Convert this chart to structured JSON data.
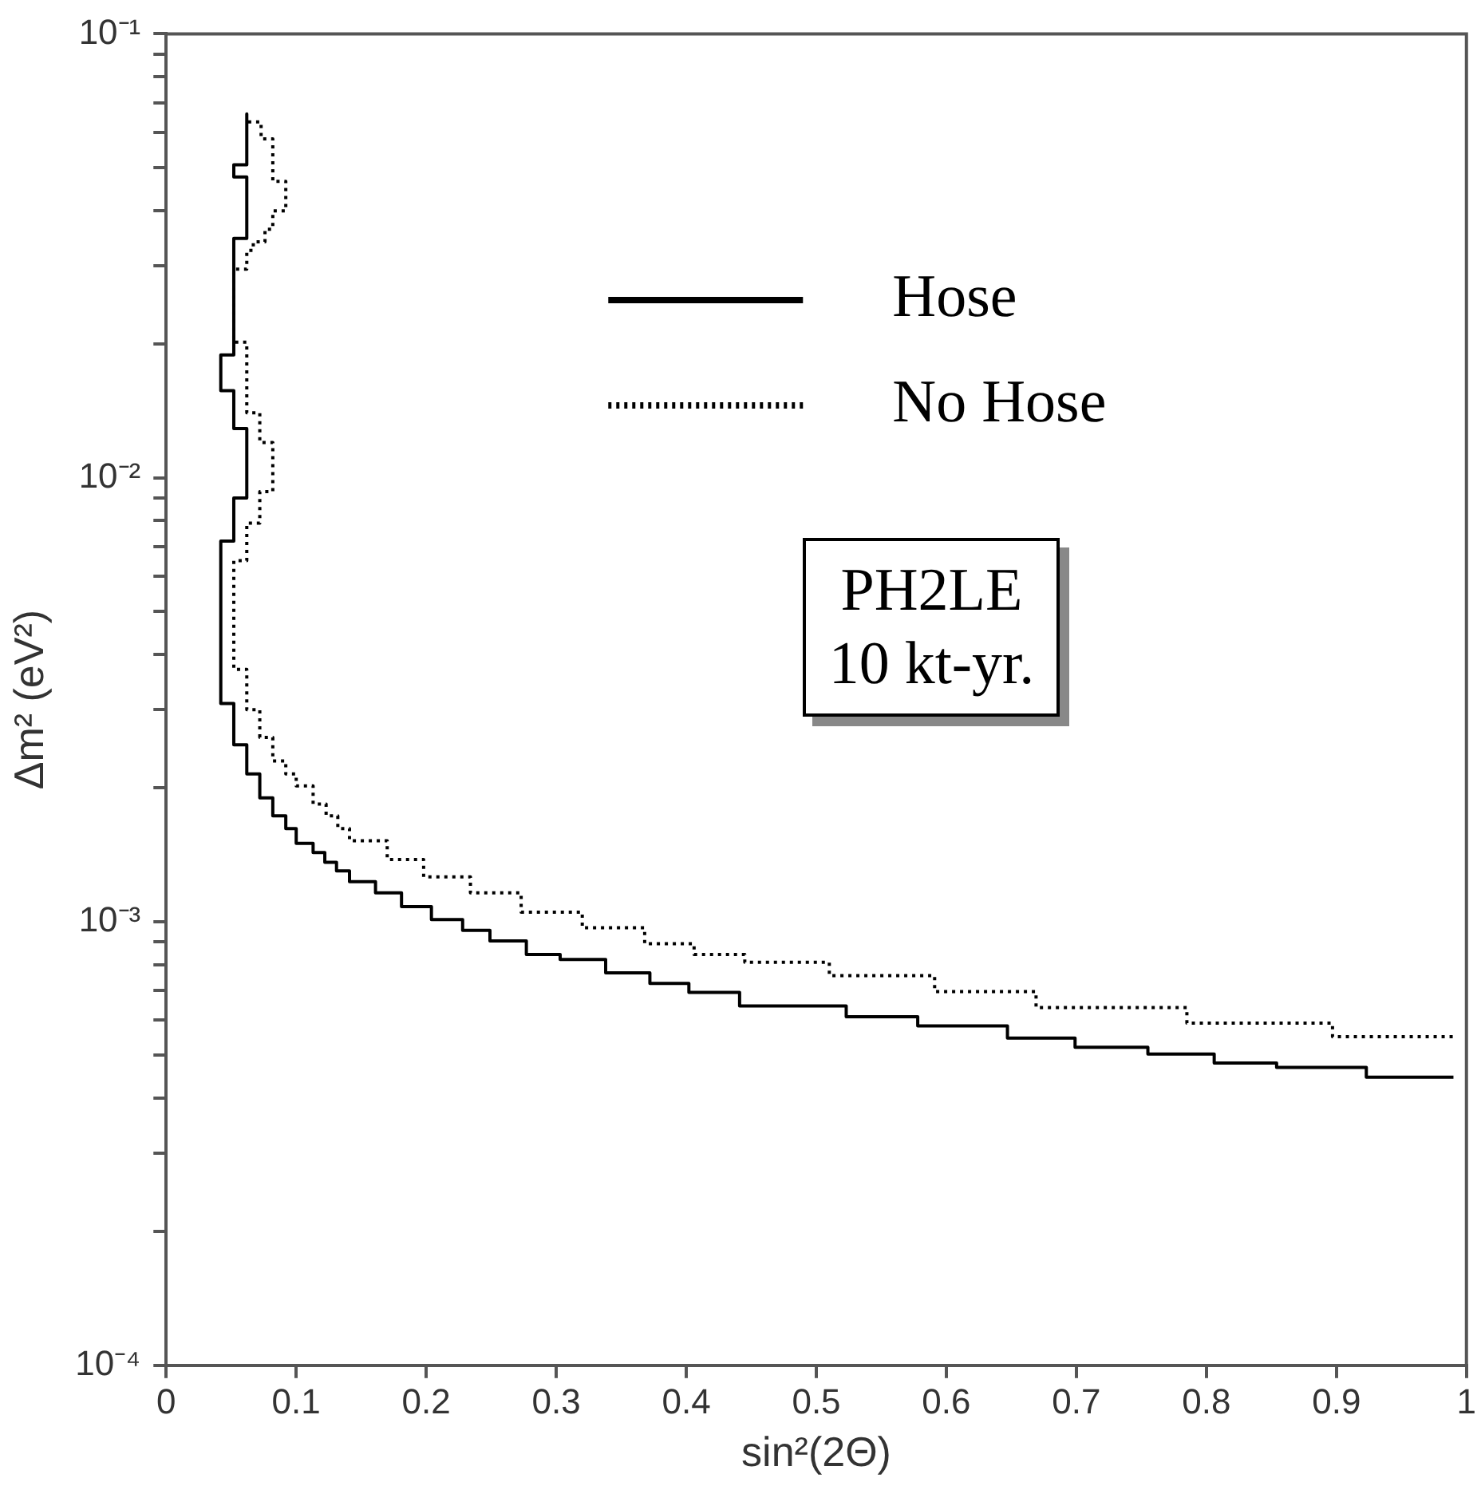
{
  "chart_data": {
    "type": "line",
    "xlabel": "sin²(2Θ)",
    "ylabel": "Δm² (eV²)",
    "log": "y",
    "grid": false,
    "legend": "top right",
    "xlim": [
      0,
      1
    ],
    "ylim": [
      0.0001,
      0.1
    ],
    "xticks": [
      0,
      0.1,
      0.2,
      0.3,
      0.4,
      0.5,
      0.6,
      0.7,
      0.8,
      0.9,
      1
    ],
    "yticks": [
      {
        "value": 0.0001,
        "label": "10⁻⁴"
      },
      {
        "value": 0.0002,
        "label": null
      },
      {
        "value": 0.0003,
        "label": null
      },
      {
        "value": 0.0004,
        "label": null
      },
      {
        "value": 0.0005,
        "label": null
      },
      {
        "value": 0.0006,
        "label": null
      },
      {
        "value": 0.0007,
        "label": null
      },
      {
        "value": 0.0008,
        "label": null
      },
      {
        "value": 0.0009,
        "label": null
      },
      {
        "value": 0.001,
        "label": "10⁻³"
      },
      {
        "value": 0.002,
        "label": null
      },
      {
        "value": 0.003,
        "label": null
      },
      {
        "value": 0.004,
        "label": null
      },
      {
        "value": 0.005,
        "label": null
      },
      {
        "value": 0.006,
        "label": null
      },
      {
        "value": 0.007,
        "label": null
      },
      {
        "value": 0.008,
        "label": null
      },
      {
        "value": 0.009,
        "label": null
      },
      {
        "value": 0.01,
        "label": "10⁻²"
      },
      {
        "value": 0.02,
        "label": null
      },
      {
        "value": 0.03,
        "label": null
      },
      {
        "value": 0.04,
        "label": null
      },
      {
        "value": 0.05,
        "label": null
      },
      {
        "value": 0.06,
        "label": null
      },
      {
        "value": 0.07,
        "label": null
      },
      {
        "value": 0.08,
        "label": null
      },
      {
        "value": 0.09,
        "label": null
      },
      {
        "value": 0.1,
        "label": "10⁻¹"
      }
    ],
    "annotations": [
      "PH2LE\n10 kt-yr."
    ],
    "series": [
      {
        "name": "Hose",
        "color": "#000000",
        "line_style": "solid",
        "x": [
          0.062,
          0.062,
          0.052,
          0.052,
          0.062,
          0.062,
          0.052,
          0.052,
          0.042,
          0.042,
          0.052,
          0.052,
          0.062,
          0.062,
          0.052,
          0.052,
          0.042,
          0.042,
          0.052,
          0.052,
          0.062,
          0.062,
          0.072,
          0.072,
          0.082,
          0.082,
          0.092,
          0.092,
          0.1,
          0.1,
          0.113,
          0.113,
          0.122,
          0.122,
          0.131,
          0.131,
          0.141,
          0.141,
          0.161,
          0.161,
          0.181,
          0.181,
          0.204,
          0.204,
          0.228,
          0.228,
          0.249,
          0.249,
          0.277,
          0.277,
          0.303,
          0.303,
          0.338,
          0.338,
          0.372,
          0.372,
          0.402,
          0.402,
          0.441,
          0.441,
          0.523,
          0.523,
          0.578,
          0.578,
          0.647,
          0.647,
          0.699,
          0.699,
          0.755,
          0.755,
          0.806,
          0.806,
          0.854,
          0.854,
          0.923,
          0.923,
          0.99
        ],
        "values": [
          0.066,
          0.0507,
          0.0507,
          0.0476,
          0.0476,
          0.0346,
          0.0346,
          0.0189,
          0.0189,
          0.0157,
          0.0157,
          0.0129,
          0.0129,
          0.009,
          0.009,
          0.0072,
          0.0072,
          0.0031,
          0.0031,
          0.0025,
          0.0025,
          0.00215,
          0.00215,
          0.0019,
          0.0019,
          0.00173,
          0.00173,
          0.00162,
          0.00162,
          0.0015,
          0.0015,
          0.00143,
          0.00143,
          0.00136,
          0.00136,
          0.0013,
          0.0013,
          0.00123,
          0.00123,
          0.00116,
          0.00116,
          0.00108,
          0.00108,
          0.00101,
          0.00101,
          0.000955,
          0.000955,
          0.000904,
          0.000904,
          0.000843,
          0.000843,
          0.000821,
          0.000821,
          0.000766,
          0.000766,
          0.000725,
          0.000725,
          0.000692,
          0.000692,
          0.000645,
          0.000645,
          0.00061,
          0.00061,
          0.000582,
          0.000582,
          0.000546,
          0.000546,
          0.000521,
          0.000521,
          0.000503,
          0.000503,
          0.00048,
          0.00048,
          0.000469,
          0.000469,
          0.000446,
          0.000446
        ]
      },
      {
        "name": "No Hose",
        "color": "#000000",
        "line_style": "dotted",
        "x": [
          0.063,
          0.073,
          0.073,
          0.082,
          0.082,
          0.092,
          0.092,
          0.082,
          0.082,
          0.076,
          0.076,
          0.067,
          0.067,
          0.062,
          0.062,
          0.052,
          0.052,
          0.062,
          0.062,
          0.072,
          0.072,
          0.082,
          0.082,
          0.072,
          0.072,
          0.062,
          0.062,
          0.052,
          0.052,
          0.062,
          0.062,
          0.072,
          0.072,
          0.082,
          0.082,
          0.092,
          0.092,
          0.1,
          0.1,
          0.113,
          0.113,
          0.123,
          0.123,
          0.132,
          0.132,
          0.141,
          0.141,
          0.17,
          0.17,
          0.198,
          0.198,
          0.234,
          0.234,
          0.273,
          0.273,
          0.32,
          0.32,
          0.368,
          0.368,
          0.406,
          0.406,
          0.445,
          0.445,
          0.51,
          0.51,
          0.591,
          0.591,
          0.669,
          0.669,
          0.785,
          0.785,
          0.897,
          0.897,
          0.99
        ],
        "values": [
          0.0633,
          0.0633,
          0.058,
          0.058,
          0.0465,
          0.0465,
          0.0399,
          0.0399,
          0.0363,
          0.0363,
          0.034,
          0.034,
          0.0325,
          0.0325,
          0.0295,
          0.0295,
          0.0202,
          0.0202,
          0.014,
          0.014,
          0.012,
          0.012,
          0.0093,
          0.0093,
          0.0079,
          0.0079,
          0.0065,
          0.0065,
          0.0037,
          0.0037,
          0.003,
          0.003,
          0.0026,
          0.0026,
          0.0023,
          0.0023,
          0.00215,
          0.00215,
          0.00202,
          0.00202,
          0.00184,
          0.00184,
          0.00173,
          0.00173,
          0.00162,
          0.00162,
          0.00152,
          0.00152,
          0.00138,
          0.00138,
          0.00126,
          0.00126,
          0.00116,
          0.00116,
          0.00105,
          0.00105,
          0.000968,
          0.000968,
          0.000891,
          0.000891,
          0.000843,
          0.000843,
          0.000809,
          0.000809,
          0.000755,
          0.000755,
          0.000695,
          0.000695,
          0.00064,
          0.00064,
          0.00059,
          0.00059,
          0.00055,
          0.00055
        ]
      }
    ]
  }
}
